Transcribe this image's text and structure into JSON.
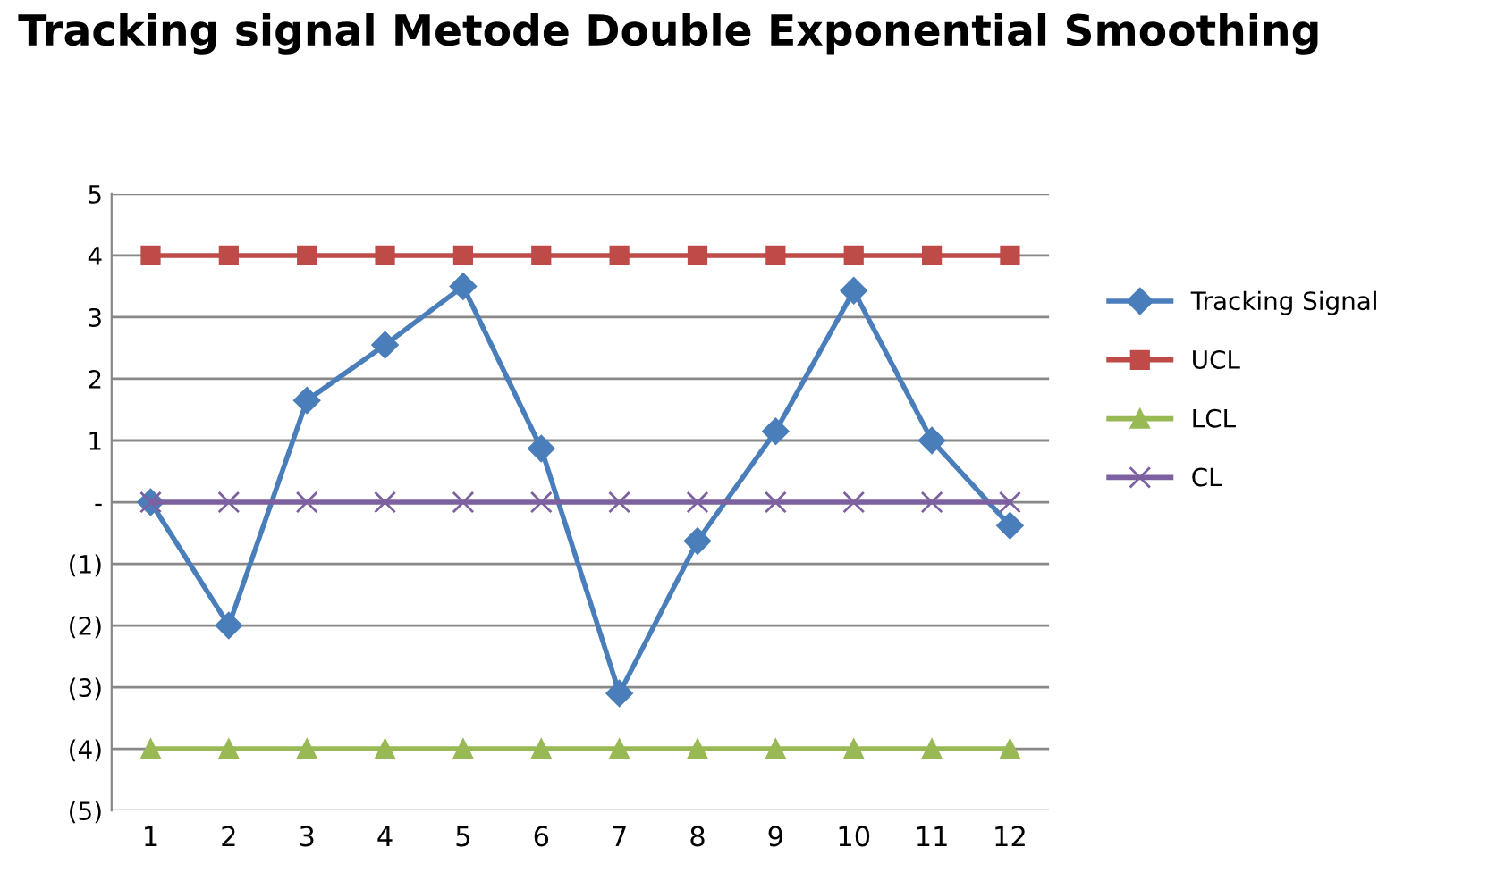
{
  "chart_data": {
    "type": "line",
    "title": "Tracking signal Metode Double Exponential Smoothing",
    "categories": [
      "1",
      "2",
      "3",
      "4",
      "5",
      "6",
      "7",
      "8",
      "9",
      "10",
      "11",
      "12"
    ],
    "series": [
      {
        "name": "Tracking Signal",
        "color": "#4a7ebb",
        "marker": "diamond",
        "values": [
          0,
          -2,
          1.65,
          2.55,
          3.5,
          0.87,
          -3.1,
          -0.63,
          1.15,
          3.43,
          1.0,
          -0.38
        ]
      },
      {
        "name": "UCL",
        "color": "#be4b48",
        "marker": "square",
        "values": [
          4,
          4,
          4,
          4,
          4,
          4,
          4,
          4,
          4,
          4,
          4,
          4
        ]
      },
      {
        "name": "LCL",
        "color": "#98b954",
        "marker": "triangle",
        "values": [
          -4,
          -4,
          -4,
          -4,
          -4,
          -4,
          -4,
          -4,
          -4,
          -4,
          -4,
          -4
        ]
      },
      {
        "name": "CL",
        "color": "#7d60a0",
        "marker": "cross",
        "values": [
          0,
          0,
          0,
          0,
          0,
          0,
          0,
          0,
          0,
          0,
          0,
          0
        ]
      }
    ],
    "ylim": [
      -5,
      5
    ],
    "yticks": [
      {
        "value": -5,
        "label": "(5)"
      },
      {
        "value": -4,
        "label": "(4)"
      },
      {
        "value": -3,
        "label": "(3)"
      },
      {
        "value": -2,
        "label": "(2)"
      },
      {
        "value": -1,
        "label": "(1)"
      },
      {
        "value": 0,
        "label": "-"
      },
      1,
      2,
      3,
      4,
      5
    ],
    "grid": "y",
    "legend": "right",
    "line_style": "solid"
  }
}
